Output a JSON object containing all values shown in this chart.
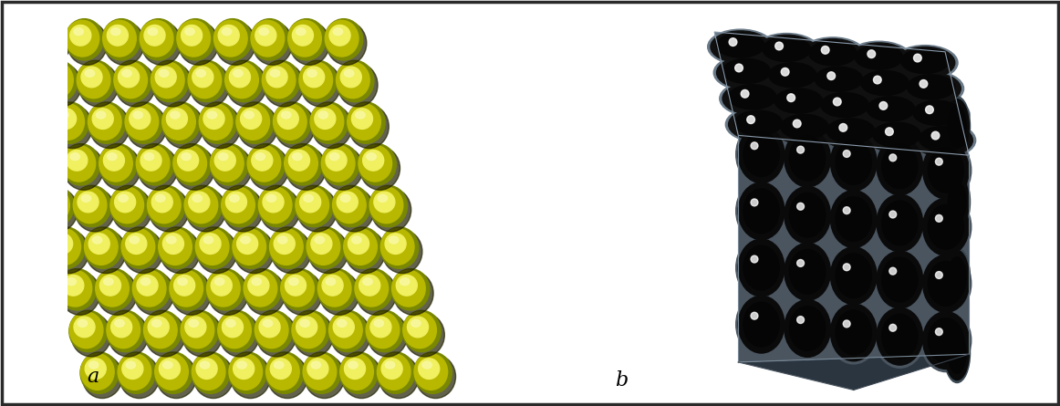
{
  "fig_width": 11.62,
  "fig_height": 4.45,
  "dpi": 100,
  "background_color": "#ffffff",
  "border_color": "#2a2a2a",
  "border_linewidth": 2.5,
  "label_a": "a",
  "label_b": "b",
  "label_fontsize": 16,
  "sphere_yellow": "#d4d400",
  "sphere_light": "#f0f060",
  "sphere_dark": "#505000",
  "sphere_shadow": "#202000",
  "matrix_gray": "#6a7a88",
  "matrix_dark": "#181818",
  "matrix_medium": "#4a5560",
  "matrix_light": "#8a9aaa",
  "hole_dark": "#080808",
  "white": "#ffffff"
}
